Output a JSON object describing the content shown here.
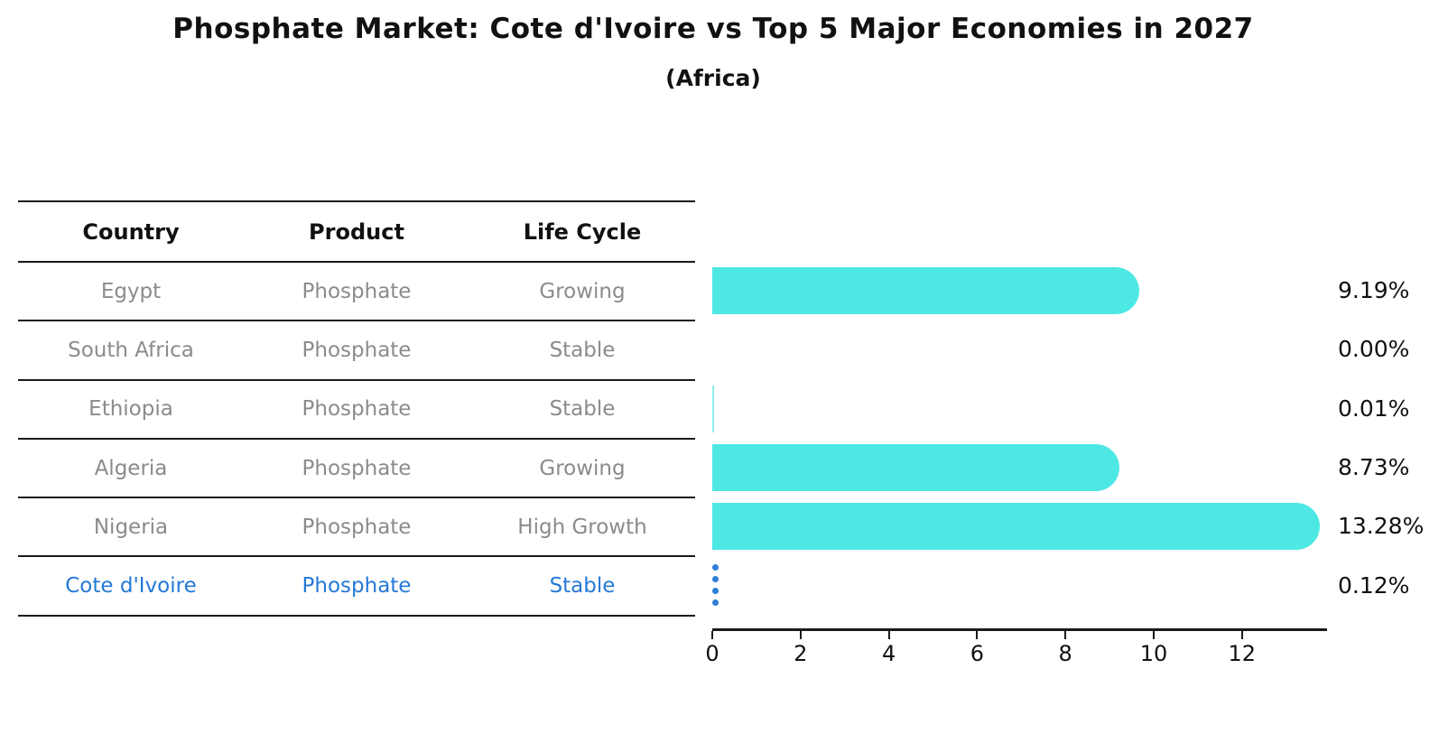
{
  "title": "Phosphate Market: Cote d'Ivoire vs Top 5 Major Economies in 2027",
  "subtitle": "(Africa)",
  "table": {
    "headers": [
      "Country",
      "Product",
      "Life Cycle"
    ]
  },
  "chart_data": {
    "type": "bar",
    "orientation": "horizontal",
    "title": "Phosphate Market: Cote d'Ivoire vs Top 5 Major Economies in 2027",
    "subtitle": "(Africa)",
    "rows": [
      {
        "country": "Egypt",
        "product": "Phosphate",
        "life_cycle": "Growing",
        "value": 9.19,
        "label": "9.19%",
        "highlight": false
      },
      {
        "country": "South Africa",
        "product": "Phosphate",
        "life_cycle": "Stable",
        "value": 0.0,
        "label": "0.00%",
        "highlight": false
      },
      {
        "country": "Ethiopia",
        "product": "Phosphate",
        "life_cycle": "Stable",
        "value": 0.01,
        "label": "0.01%",
        "highlight": false
      },
      {
        "country": "Algeria",
        "product": "Phosphate",
        "life_cycle": "Growing",
        "value": 8.73,
        "label": "8.73%",
        "highlight": false
      },
      {
        "country": "Nigeria",
        "product": "Phosphate",
        "life_cycle": "High Growth",
        "value": 13.28,
        "label": "13.28%",
        "highlight": false
      },
      {
        "country": "Cote d'Ivoire",
        "product": "Phosphate",
        "life_cycle": "Stable",
        "value": 0.12,
        "label": "0.12%",
        "highlight": true
      }
    ],
    "x_axis": {
      "ticks": [
        0,
        2,
        4,
        6,
        8,
        10,
        12
      ],
      "min": 0,
      "max": 13.9
    },
    "legend": "none",
    "grid": false,
    "colors": {
      "bar": "#4de8e4",
      "bar_thin": "#8deee9",
      "highlight_bar": "#2e7fd9",
      "highlight_text": "#2479d6",
      "table_text": "#8b8b8b",
      "header_text": "#111111",
      "line": "#1a1a1a"
    }
  }
}
